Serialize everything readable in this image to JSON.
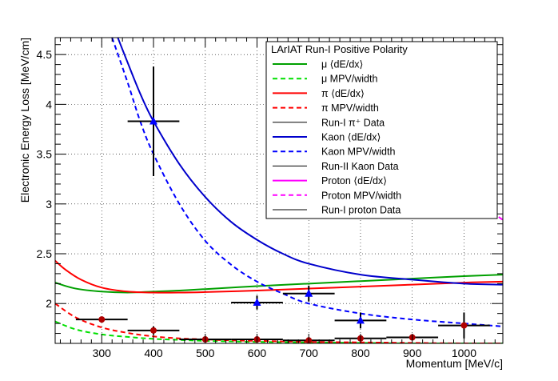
{
  "chart_data": {
    "type": "line",
    "xlabel": "Momentum [MeV/c]",
    "ylabel": "Electronic Energy Loss [MeV/cm]",
    "xlim": [
      210,
      1075
    ],
    "ylim": [
      1.6,
      4.67
    ],
    "xticks": [
      300,
      400,
      500,
      600,
      700,
      800,
      900,
      1000
    ],
    "yticks": [
      2,
      2.5,
      3,
      3.5,
      4,
      4.5
    ],
    "legend": {
      "title": "LArIAT Run-I Positive Polarity",
      "placement": "top-right",
      "entries": [
        {
          "label": "μ ⟨dE/dx⟩",
          "color": "#00a000",
          "style": "solid"
        },
        {
          "label": "μ MPV/width",
          "color": "#00e000",
          "style": "dashed"
        },
        {
          "label": "π ⟨dE/dx⟩",
          "color": "#ff0000",
          "style": "solid"
        },
        {
          "label": "π MPV/width",
          "color": "#ff0000",
          "style": "dashed"
        },
        {
          "label": "Run-I π⁺ Data",
          "color": "#000000",
          "style": "solid"
        },
        {
          "label": "Kaon ⟨dE/dx⟩",
          "color": "#0000cc",
          "style": "solid"
        },
        {
          "label": "Kaon MPV/width",
          "color": "#0000ff",
          "style": "dashed"
        },
        {
          "label": "Run-II Kaon Data",
          "color": "#000000",
          "style": "solid"
        },
        {
          "label": "Proton ⟨dE/dx⟩",
          "color": "#ff00ff",
          "style": "solid"
        },
        {
          "label": "Proton MPV/width",
          "color": "#ff00ff",
          "style": "dashed"
        },
        {
          "label": "Run-I proton Data",
          "color": "#000000",
          "style": "solid"
        }
      ]
    },
    "curves": [
      {
        "name": "μ ⟨dE/dx⟩",
        "color": "#00a000",
        "dash": false,
        "x": [
          210,
          250,
          300,
          350,
          400,
          450,
          500,
          600,
          700,
          800,
          900,
          1000,
          1075
        ],
        "y": [
          2.21,
          2.15,
          2.12,
          2.11,
          2.12,
          2.13,
          2.145,
          2.175,
          2.2,
          2.225,
          2.25,
          2.275,
          2.29
        ]
      },
      {
        "name": "μ MPV/width",
        "color": "#00e000",
        "dash": true,
        "x": [
          210,
          250,
          300,
          350,
          400,
          450,
          500,
          550,
          600,
          700,
          800,
          900,
          1000,
          1075
        ],
        "y": [
          1.82,
          1.74,
          1.69,
          1.665,
          1.645,
          1.635,
          1.625,
          1.62,
          1.615,
          1.61,
          1.605,
          1.6,
          1.6,
          1.6
        ]
      },
      {
        "name": "π ⟨dE/dx⟩",
        "color": "#ff0000",
        "dash": false,
        "x": [
          210,
          230,
          260,
          300,
          350,
          400,
          450,
          500,
          600,
          700,
          800,
          900,
          1000,
          1075
        ],
        "y": [
          2.43,
          2.34,
          2.24,
          2.16,
          2.12,
          2.11,
          2.11,
          2.115,
          2.13,
          2.15,
          2.17,
          2.19,
          2.21,
          2.22
        ]
      },
      {
        "name": "π MPV/width",
        "color": "#ff0000",
        "dash": true,
        "x": [
          210,
          250,
          300,
          350,
          400,
          450,
          500,
          550,
          600,
          700,
          800,
          900,
          1000,
          1075
        ],
        "y": [
          2.0,
          1.86,
          1.76,
          1.705,
          1.67,
          1.65,
          1.64,
          1.63,
          1.625,
          1.615,
          1.61,
          1.605,
          1.6,
          1.6
        ]
      },
      {
        "name": "Kaon ⟨dE/dx⟩",
        "color": "#0000cc",
        "dash": false,
        "x": [
          325,
          350,
          375,
          400,
          450,
          500,
          550,
          600,
          650,
          700,
          800,
          900,
          1000,
          1075
        ],
        "y": [
          4.75,
          4.42,
          4.1,
          3.83,
          3.4,
          3.07,
          2.82,
          2.64,
          2.5,
          2.4,
          2.29,
          2.24,
          2.2,
          2.19
        ]
      },
      {
        "name": "Kaon MPV/width",
        "color": "#0000ff",
        "dash": true,
        "x": [
          320,
          350,
          375,
          400,
          450,
          500,
          550,
          600,
          650,
          700,
          800,
          900,
          1000,
          1075
        ],
        "y": [
          4.67,
          4.22,
          3.82,
          3.5,
          3.0,
          2.63,
          2.39,
          2.22,
          2.1,
          2.0,
          1.9,
          1.84,
          1.8,
          1.77
        ]
      },
      {
        "name": "Proton MPV/width",
        "color": "#ff00ff",
        "dash": true,
        "x": [
          990,
          1020,
          1050,
          1075
        ],
        "y": [
          3.14,
          3.03,
          2.93,
          2.84
        ]
      }
    ],
    "data_points": [
      {
        "group": "Run-II Kaon Data",
        "marker": "triangle",
        "color": "#0000ff",
        "points": [
          {
            "x": 400,
            "y": 3.83,
            "xerr": 50,
            "yerr": 0.55
          },
          {
            "x": 600,
            "y": 2.01,
            "xerr": 50,
            "yerr": 0.07
          },
          {
            "x": 700,
            "y": 2.1,
            "xerr": 50,
            "yerr": 0.08
          },
          {
            "x": 800,
            "y": 1.83,
            "xerr": 50,
            "yerr": 0.08
          }
        ]
      },
      {
        "group": "Run-I π⁺ / proton Data",
        "marker": "circle",
        "color": "#b00000",
        "points": [
          {
            "x": 300,
            "y": 1.84,
            "xerr": 50,
            "yerr": 0.02
          },
          {
            "x": 400,
            "y": 1.73,
            "xerr": 50,
            "yerr": 0.04
          },
          {
            "x": 500,
            "y": 1.64,
            "xerr": 50,
            "yerr": 0.02
          },
          {
            "x": 600,
            "y": 1.64,
            "xerr": 50,
            "yerr": 0.02
          },
          {
            "x": 700,
            "y": 1.63,
            "xerr": 50,
            "yerr": 0.02
          },
          {
            "x": 800,
            "y": 1.65,
            "xerr": 50,
            "yerr": 0.02
          },
          {
            "x": 900,
            "y": 1.66,
            "xerr": 50,
            "yerr": 0.02
          },
          {
            "x": 1000,
            "y": 1.78,
            "xerr": 50,
            "yerr": 0.13
          }
        ]
      }
    ]
  }
}
